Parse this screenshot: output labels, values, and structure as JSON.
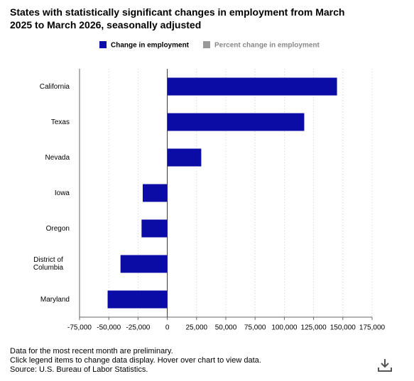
{
  "chart_data": {
    "type": "hbar",
    "title": "States with statistically significant changes in employment from March 2025 to March 2026, seasonally adjusted",
    "categories": [
      "California",
      "Texas",
      "Nevada",
      "Iowa",
      "Oregon",
      "District of Columbia",
      "Maryland"
    ],
    "series": [
      {
        "name": "Change in employment",
        "color": "#0b0ba6",
        "values": [
          145000,
          117000,
          29000,
          -21000,
          -22000,
          -40000,
          -51000
        ]
      }
    ],
    "hidden_series": [
      {
        "name": "Percent change in employment",
        "color": "#999999"
      }
    ],
    "xlim": [
      -75000,
      175000
    ],
    "xticks": [
      {
        "value": -75000,
        "label": "-75,000"
      },
      {
        "value": -50000,
        "label": "-50,000"
      },
      {
        "value": -25000,
        "label": "-25,000"
      },
      0,
      {
        "value": 25000,
        "label": "25,000"
      },
      {
        "value": 50000,
        "label": "50,000"
      },
      {
        "value": 75000,
        "label": "75,000"
      },
      {
        "value": 100000,
        "label": "100,000"
      },
      {
        "value": 125000,
        "label": "125,000"
      },
      {
        "value": 150000,
        "label": "150,000"
      },
      {
        "value": 175000,
        "label": "175,000"
      }
    ],
    "grid": true,
    "notes": [
      "Data for the most recent month are preliminary.",
      "Click legend items to change data display. Hover over chart to view data.",
      "Source: U.S. Bureau of Labor Statistics."
    ]
  }
}
